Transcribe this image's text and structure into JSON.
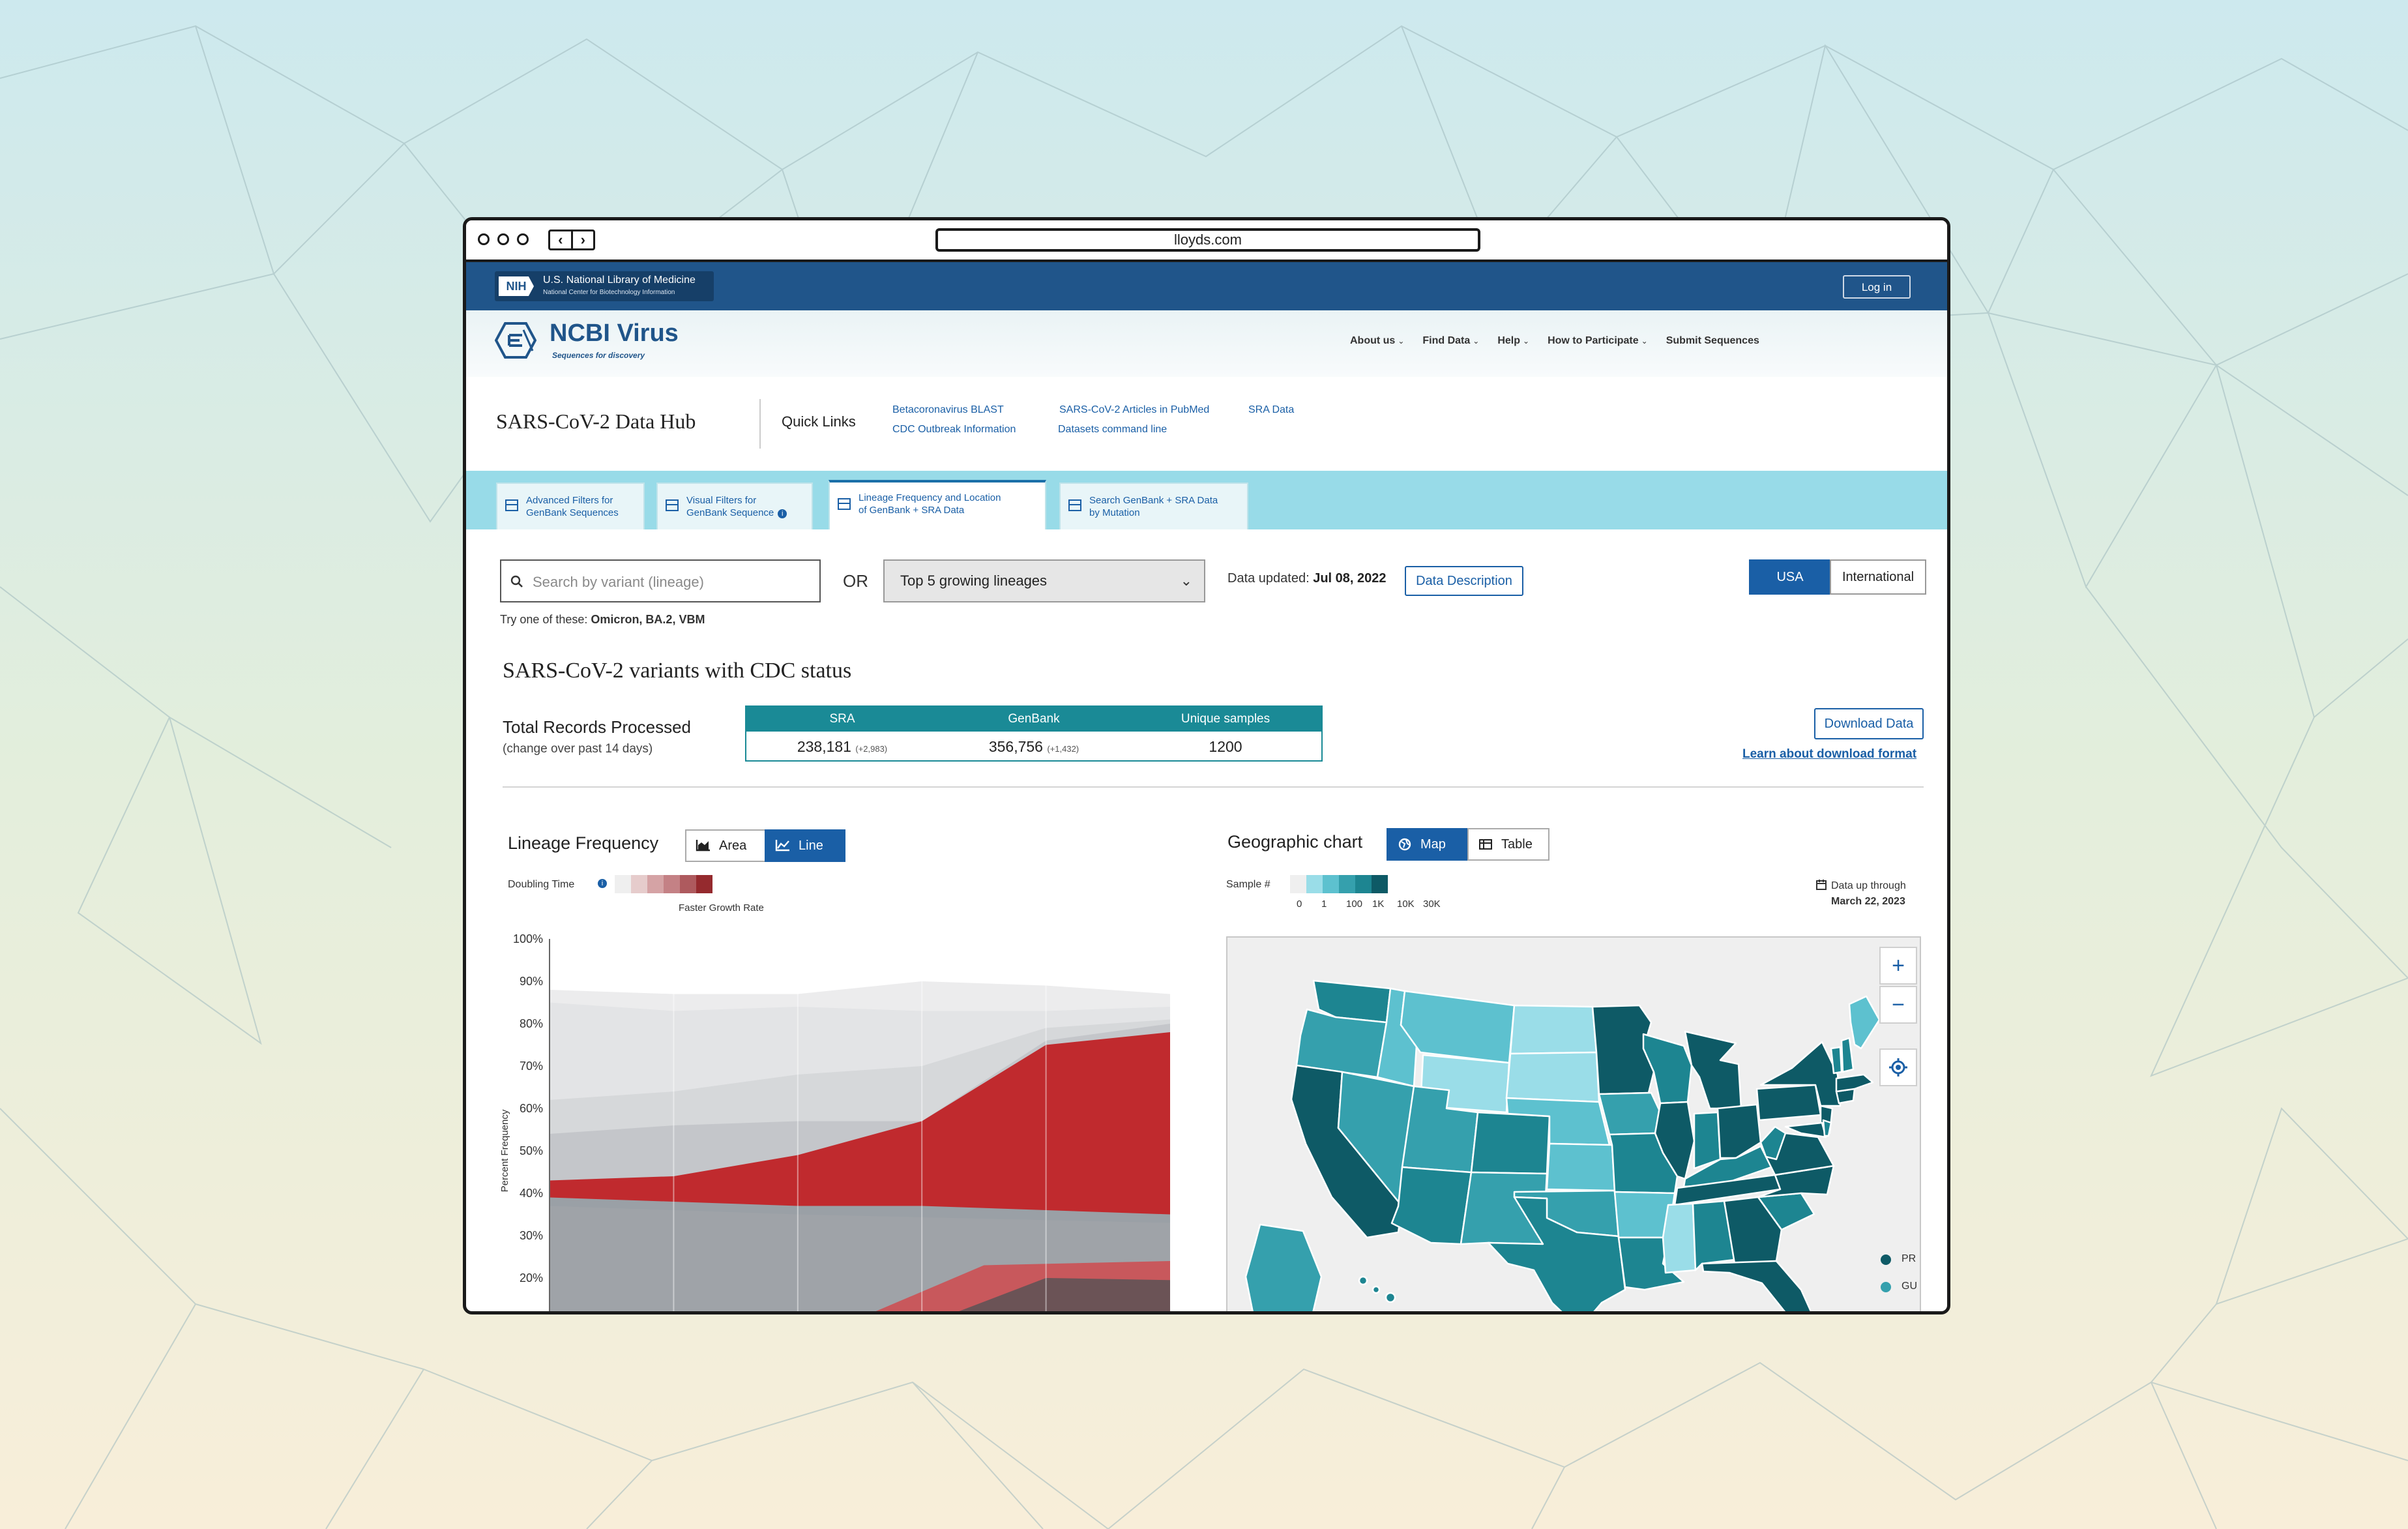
{
  "browser": {
    "url": "lloyds.com"
  },
  "nih": {
    "org": "U.S. National Library of Medicine",
    "sub": "National Center for Biotechnology Information",
    "badge": "NIH",
    "login": "Log in"
  },
  "header": {
    "logo_name": "NCBI Virus",
    "logo_tagline": "Sequences for discovery",
    "nav": [
      "About us",
      "Find Data",
      "Help",
      "How to Participate",
      "Submit Sequences"
    ]
  },
  "hub": {
    "title": "SARS-CoV-2 Data Hub",
    "quick_links_label": "Quick Links",
    "links": [
      "Betacoronavirus BLAST",
      "CDC Outbreak Information",
      "SARS-CoV-2 Articles in PubMed",
      "Datasets command line",
      "SRA Data"
    ]
  },
  "tabs": [
    {
      "line1": "Advanced Filters for",
      "line2": "GenBank Sequences"
    },
    {
      "line1": "Visual Filters for",
      "line2": "GenBank Sequence"
    },
    {
      "line1": "Lineage Frequency and Location",
      "line2": "of GenBank + SRA Data"
    },
    {
      "line1": "Search GenBank + SRA Data",
      "line2": "by Mutation"
    }
  ],
  "controls": {
    "search_placeholder": "Search by variant (lineage)",
    "or": "OR",
    "dropdown_value": "Top 5 growing lineages",
    "updated_label": "Data  updated:",
    "updated_value": "Jul 08, 2022",
    "description_button": "Data Description",
    "region_options": [
      "USA",
      "International"
    ],
    "region_selected": "USA",
    "try_prefix": "Try one of these:",
    "try_values": "Omicron, BA.2, VBM"
  },
  "summary": {
    "title": "SARS-CoV-2 variants with CDC status",
    "total_label": "Total Records Processed",
    "total_sub": "(change over past 14 days)",
    "columns": [
      "SRA",
      "GenBank",
      "Unique samples"
    ],
    "values": [
      {
        "value": "238,181",
        "change": "(+2,983)"
      },
      {
        "value": "356,756",
        "change": "(+1,432)"
      },
      {
        "value": "1200",
        "change": ""
      }
    ],
    "download_button": "Download Data",
    "download_link": "Learn about download format"
  },
  "lineage": {
    "title": "Lineage Frequency",
    "toggle": [
      "Area",
      "Line"
    ],
    "toggle_selected": "Line",
    "doubling_label": "Doubling Time",
    "doubling_caption": "Faster Growth Rate",
    "doubling_colors": [
      "#efefef",
      "#e6cccc",
      "#d5a3a5",
      "#c48185",
      "#ae5a5e",
      "#952a2e"
    ],
    "yaxis_label": "Percent Frequency"
  },
  "chart_data": {
    "type": "area",
    "title": "Lineage Frequency",
    "ylabel": "Percent Frequency",
    "yticks": [
      "100%",
      "90%",
      "80%",
      "70%",
      "60%",
      "50%",
      "40%",
      "30%",
      "20%"
    ],
    "ylim": [
      0,
      100
    ],
    "x_points": 6,
    "grid": true,
    "series": [
      {
        "color": "#9aa0a6",
        "upper": [
          39,
          38,
          37,
          37,
          36,
          35
        ]
      },
      {
        "color": "#c02a2e",
        "upper": [
          43,
          44,
          49,
          57,
          75,
          78
        ]
      },
      {
        "color": "#c4c6ca",
        "upper": [
          54,
          56,
          57,
          57,
          76,
          80
        ]
      },
      {
        "color": "#d6d8da",
        "upper": [
          62,
          64,
          68,
          70,
          79,
          81
        ]
      },
      {
        "color": "#e3e4e6",
        "upper": [
          85,
          83,
          84,
          83,
          83,
          84
        ]
      },
      {
        "color": "#ececed",
        "upper": [
          88,
          87,
          87,
          90,
          89,
          87
        ]
      }
    ]
  },
  "geo": {
    "title": "Geographic chart",
    "toggle": [
      "Map",
      "Table"
    ],
    "toggle_selected": "Map",
    "sample_label": "Sample #",
    "scale_labels": [
      "0",
      "1",
      "100",
      "1K",
      "10K",
      "30K"
    ],
    "scale_colors": [
      "#efefef",
      "#9adde8",
      "#5dc1cf",
      "#35a0ad",
      "#1d8591",
      "#0e5a66"
    ],
    "data_through_label": "Data up through",
    "data_through_value": "March 22, 2023",
    "zoom_in": "+",
    "zoom_out": "−",
    "territories": [
      "PR",
      "GU"
    ]
  }
}
